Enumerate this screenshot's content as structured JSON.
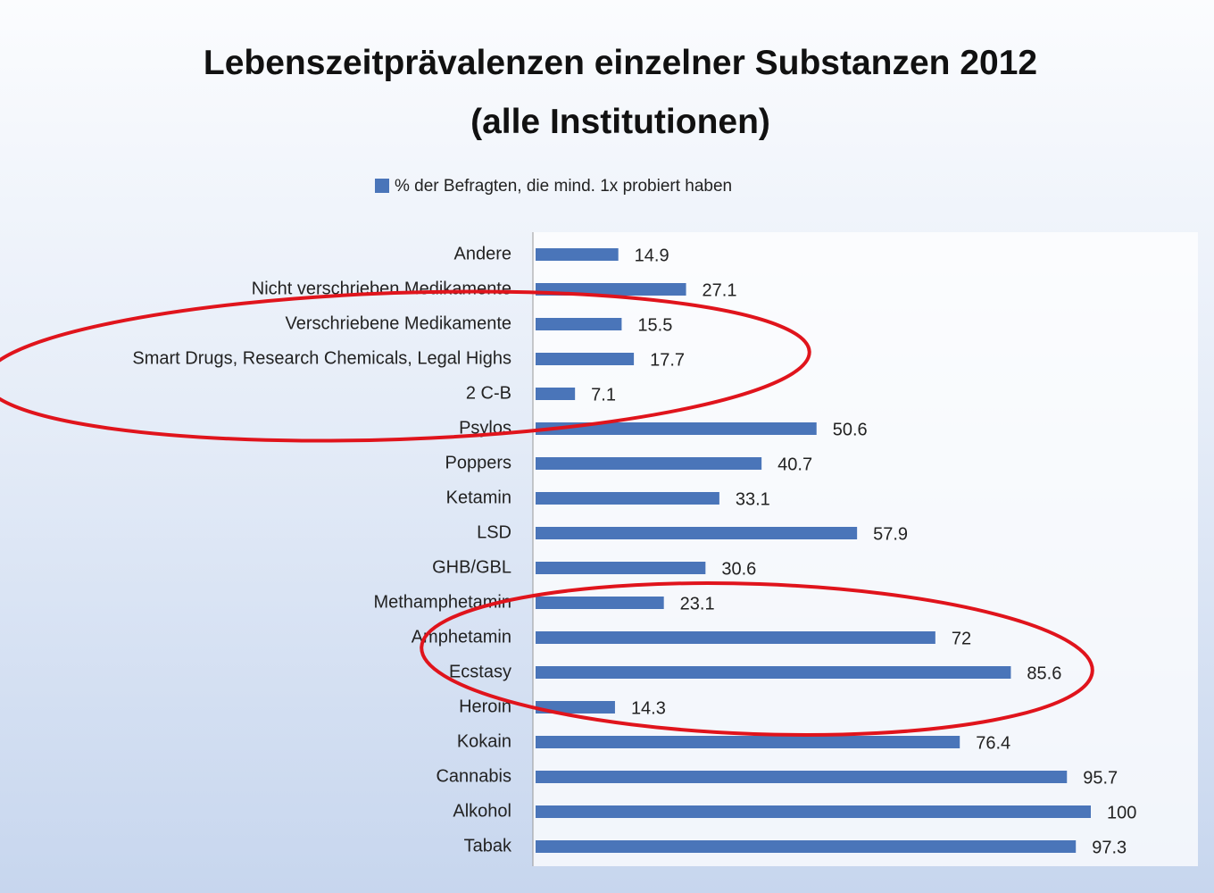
{
  "chart_data": {
    "type": "bar",
    "title": "Lebenszeitprävalenzen einzelner Substanzen 2012 (alle Institutionen)",
    "categories": [
      "Andere",
      "Nicht verschrieben Medikamente",
      "Verschriebene Medikamente",
      "Smart Drugs, Research Chemicals, Legal Highs",
      "2 C-B",
      "Psylos",
      "Poppers",
      "Ketamin",
      "LSD",
      "GHB/GBL",
      "Methamphetamin",
      "Amphetamin",
      "Ecstasy",
      "Heroin",
      "Kokain",
      "Cannabis",
      "Alkohol",
      "Tabak"
    ],
    "series": [
      {
        "name": "% der Befragten, die mind. 1x probiert haben",
        "color": "#4a75b9",
        "values": [
          14.9,
          27.1,
          15.5,
          17.7,
          7.1,
          50.6,
          40.7,
          33.1,
          57.9,
          30.6,
          23.1,
          72,
          85.6,
          14.3,
          76.4,
          95.7,
          100,
          97.3
        ]
      }
    ]
  }
}
